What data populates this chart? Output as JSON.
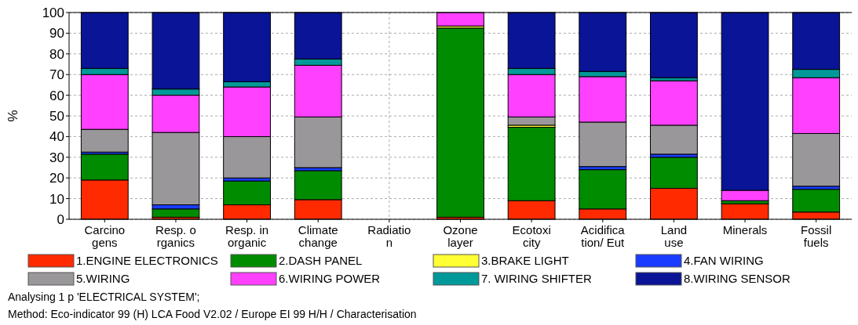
{
  "chart_data": {
    "type": "bar",
    "stacked": true,
    "ylabel": "%",
    "ylim": [
      0,
      100
    ],
    "yticks": [
      0,
      10,
      20,
      30,
      40,
      50,
      60,
      70,
      80,
      90,
      100
    ],
    "grid": true,
    "legend": "bottom",
    "categories": [
      "Carcino\ngens",
      "Resp. o\nrganics",
      "Resp. in\norganic",
      "Climate\nchange",
      "Radiatio\nn",
      "Ozone\nlayer",
      "Ecotoxi\ncity",
      "Acidifica\ntion/ Eut",
      "Land\nuse",
      "Minerals",
      "Fossil\nfuels"
    ],
    "series": [
      {
        "name": "1.ENGINE ELECTRONICS",
        "color": "#ff2a00",
        "values": [
          19,
          1,
          7,
          9.5,
          0,
          1,
          9,
          5,
          15,
          7.5,
          3.5
        ]
      },
      {
        "name": "2.DASH PANEL",
        "color": "#008c00",
        "values": [
          12.5,
          4,
          11.5,
          14,
          0,
          91.5,
          35.5,
          19,
          15,
          1.5,
          11
        ]
      },
      {
        "name": "3.BRAKE LIGHT",
        "color": "#ffff33",
        "values": [
          null,
          0,
          0,
          0,
          0,
          1,
          1,
          0,
          null,
          0,
          0
        ]
      },
      {
        "name": "4.FAN WIRING",
        "color": "#1a3cff",
        "values": [
          1,
          2,
          1.5,
          1.5,
          0,
          0,
          0,
          1.5,
          1.5,
          null,
          1.5
        ]
      },
      {
        "name": "5.WIRING",
        "color": "#9a979a",
        "values": [
          11,
          35,
          20,
          24.5,
          0,
          0,
          4,
          21.5,
          14,
          0,
          25.5
        ]
      },
      {
        "name": "6.WIRING POWER",
        "color": "#ff40ff",
        "values": [
          26.5,
          18,
          24,
          25,
          0,
          6.5,
          20.5,
          22,
          21.5,
          5,
          27
        ]
      },
      {
        "name": "7. WIRING SHIFTER",
        "color": "#009999",
        "values": [
          3,
          3,
          2.5,
          3,
          0,
          0,
          3,
          2.5,
          1.5,
          0,
          4
        ]
      },
      {
        "name": "8.WIRING SENSOR",
        "color": "#0a1496",
        "values": [
          27,
          37,
          33.5,
          22.5,
          0,
          0,
          27,
          28.5,
          31.5,
          86,
          27.5
        ]
      }
    ],
    "annotations": [
      "Analysing 1 p 'ELECTRICAL SYSTEM';",
      "Method: Eco-indicator 99 (H) LCA Food V2.02 / Europe EI 99 H/H / Characterisation"
    ]
  }
}
